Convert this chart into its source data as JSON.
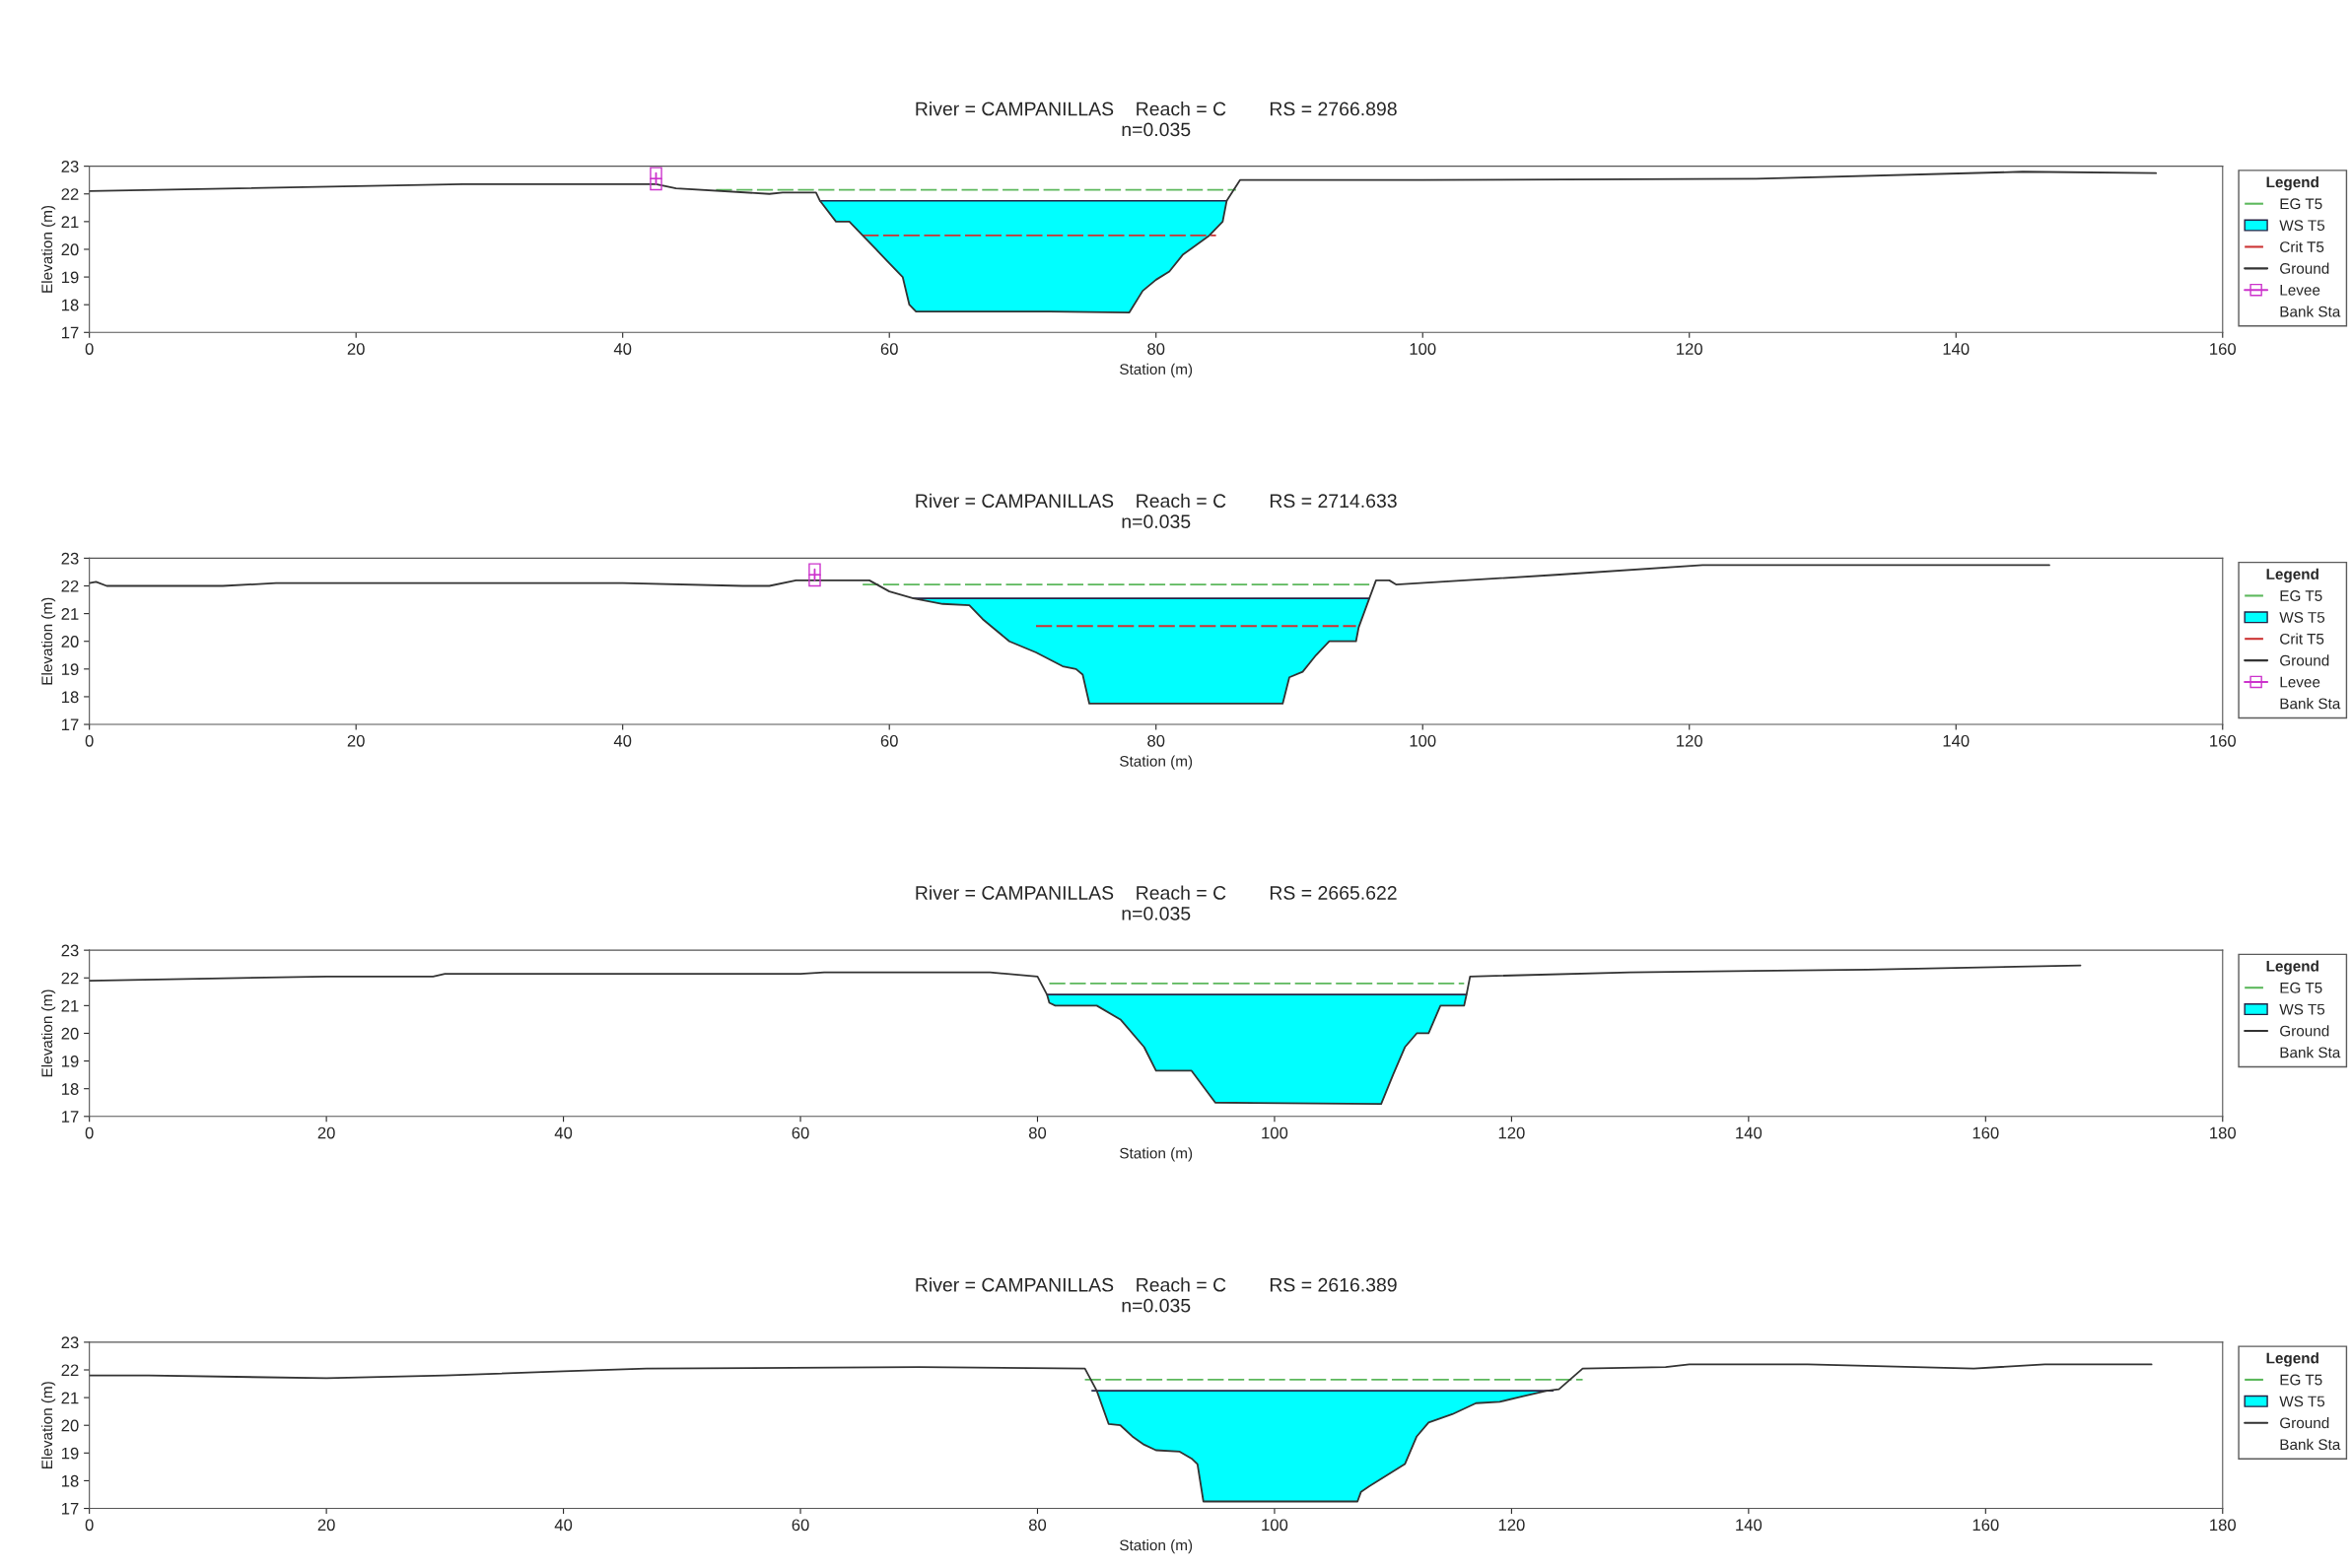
{
  "chart_data": [
    {
      "type": "line",
      "title": "River = CAMPANILLAS    Reach = C        RS = 2766.898",
      "subtitle": "n=0.035",
      "xlabel": "Station (m)",
      "ylabel": "Elevation (m)",
      "legend_title": "Legend",
      "legend": "right",
      "xlim": [
        0,
        160
      ],
      "xticks": [
        0,
        20,
        40,
        60,
        80,
        100,
        120,
        140,
        160
      ],
      "ylim": [
        17,
        23
      ],
      "yticks": [
        17,
        18,
        19,
        20,
        21,
        22,
        23
      ],
      "series": [
        {
          "name": "EG T5",
          "line_style": "dashed",
          "color": "#5cb85c",
          "x": [
            47,
            86
          ],
          "values": [
            22.15,
            22.15
          ]
        },
        {
          "name": "WS T5",
          "type": "area",
          "color": "#00ffff",
          "x": [
            54.8,
            85.3
          ],
          "values": [
            21.75,
            21.75
          ]
        },
        {
          "name": "Crit T5",
          "line_style": "dashed",
          "color": "#cc3333",
          "x": [
            58,
            84.5
          ],
          "values": [
            20.5,
            20.5
          ]
        },
        {
          "name": "Ground",
          "color": "#333333",
          "x": [
            0,
            28,
            42.5,
            44,
            51,
            52,
            54,
            54.5,
            54.8,
            56,
            57,
            58,
            59,
            60,
            61,
            61.5,
            62,
            72,
            78,
            79,
            80,
            81,
            82,
            84,
            85,
            85.3,
            86.3,
            100,
            125,
            145,
            155
          ],
          "values": [
            22.1,
            22.35,
            22.35,
            22.2,
            22.0,
            22.05,
            22.05,
            22.05,
            21.75,
            21.0,
            21.0,
            20.5,
            20.0,
            19.5,
            19.0,
            18.0,
            17.75,
            17.75,
            17.72,
            18.5,
            18.9,
            19.2,
            19.8,
            20.5,
            21.0,
            21.75,
            22.5,
            22.5,
            22.55,
            22.8,
            22.75
          ]
        },
        {
          "name": "Levee",
          "marker": "square",
          "color": "#cc33cc",
          "x": [
            42.5,
            42.5
          ],
          "values": [
            22.35,
            22.75
          ]
        },
        {
          "name": "Bank Sta"
        }
      ]
    },
    {
      "type": "line",
      "title": "River = CAMPANILLAS    Reach = C        RS = 2714.633",
      "subtitle": "n=0.035",
      "xlabel": "Station (m)",
      "ylabel": "Elevation (m)",
      "legend_title": "Legend",
      "legend": "right",
      "xlim": [
        0,
        160
      ],
      "xticks": [
        0,
        20,
        40,
        60,
        80,
        100,
        120,
        140,
        160
      ],
      "ylim": [
        17,
        23
      ],
      "yticks": [
        17,
        18,
        19,
        20,
        21,
        22,
        23
      ],
      "series": [
        {
          "name": "EG T5",
          "line_style": "dashed",
          "color": "#5cb85c",
          "x": [
            58,
            96
          ],
          "values": [
            22.05,
            22.05
          ]
        },
        {
          "name": "WS T5",
          "type": "area",
          "color": "#00ffff",
          "x": [
            61.8,
            96
          ],
          "values": [
            21.55,
            21.55
          ]
        },
        {
          "name": "Crit T5",
          "line_style": "dashed",
          "color": "#cc3333",
          "x": [
            71,
            95
          ],
          "values": [
            20.55,
            20.55
          ]
        },
        {
          "name": "Ground",
          "color": "#333333",
          "x": [
            0,
            0.5,
            1.3,
            10,
            14,
            40,
            49,
            51,
            53,
            58.5,
            60,
            61.8,
            64,
            66,
            67,
            68,
            69,
            71,
            73,
            74,
            74.5,
            75,
            89.5,
            90,
            91,
            92,
            93,
            95,
            95.2,
            96,
            96.5,
            97.5,
            98,
            110,
            121,
            147
          ],
          "values": [
            22.1,
            22.15,
            22.0,
            22.0,
            22.1,
            22.1,
            22.0,
            22.0,
            22.2,
            22.2,
            21.8,
            21.55,
            21.35,
            21.3,
            20.8,
            20.4,
            20.0,
            19.6,
            19.1,
            19.0,
            18.8,
            17.75,
            17.75,
            18.7,
            18.9,
            19.5,
            20.0,
            20.0,
            20.5,
            21.55,
            22.2,
            22.2,
            22.05,
            22.4,
            22.75,
            22.75
          ]
        },
        {
          "name": "Levee",
          "marker": "square",
          "color": "#cc33cc",
          "x": [
            54.4,
            54.4
          ],
          "values": [
            22.2,
            22.6
          ]
        },
        {
          "name": "Bank Sta"
        }
      ]
    },
    {
      "type": "line",
      "title": "River = CAMPANILLAS    Reach = C        RS = 2665.622",
      "subtitle": "n=0.035",
      "xlabel": "Station (m)",
      "ylabel": "Elevation (m)",
      "legend_title": "Legend",
      "legend": "right",
      "xlim": [
        0,
        180
      ],
      "xticks": [
        0,
        20,
        40,
        60,
        80,
        100,
        120,
        140,
        160,
        180
      ],
      "ylim": [
        17,
        23
      ],
      "yticks": [
        17,
        18,
        19,
        20,
        21,
        22,
        23
      ],
      "series": [
        {
          "name": "EG T5",
          "line_style": "dashed",
          "color": "#5cb85c",
          "x": [
            81,
            116
          ],
          "values": [
            21.8,
            21.8
          ]
        },
        {
          "name": "WS T5",
          "type": "area",
          "color": "#00ffff",
          "x": [
            80.8,
            116.2
          ],
          "values": [
            21.4,
            21.4
          ]
        },
        {
          "name": "Ground",
          "color": "#333333",
          "x": [
            0,
            20,
            29,
            30,
            40,
            60,
            62,
            76,
            80,
            80.8,
            81,
            81.5,
            85,
            87,
            89,
            90,
            93,
            95,
            109,
            110,
            111,
            112,
            113,
            114,
            116,
            116.2,
            116.5,
            130,
            150,
            168
          ],
          "values": [
            21.9,
            22.05,
            22.05,
            22.15,
            22.15,
            22.15,
            22.2,
            22.2,
            22.05,
            21.4,
            21.1,
            21.0,
            21.0,
            20.5,
            19.5,
            18.65,
            18.65,
            17.5,
            17.45,
            18.5,
            19.5,
            20.0,
            20.0,
            21.0,
            21.0,
            21.4,
            22.05,
            22.2,
            22.3,
            22.45
          ]
        },
        {
          "name": "Bank Sta"
        }
      ]
    },
    {
      "type": "line",
      "title": "River = CAMPANILLAS    Reach = C        RS = 2616.389",
      "subtitle": "n=0.035",
      "xlabel": "Station (m)",
      "ylabel": "Elevation (m)",
      "legend_title": "Legend",
      "legend": "right",
      "xlim": [
        0,
        180
      ],
      "xticks": [
        0,
        20,
        40,
        60,
        80,
        100,
        120,
        140,
        160,
        180
      ],
      "ylim": [
        17,
        23
      ],
      "yticks": [
        17,
        18,
        19,
        20,
        21,
        22,
        23
      ],
      "series": [
        {
          "name": "EG T5",
          "line_style": "dashed",
          "color": "#5cb85c",
          "x": [
            84,
            126
          ],
          "values": [
            21.65,
            21.65
          ]
        },
        {
          "name": "WS T5",
          "type": "area",
          "color": "#00ffff",
          "x": [
            84.6,
            123.5
          ],
          "values": [
            21.25,
            21.25
          ]
        },
        {
          "name": "Ground",
          "color": "#333333",
          "x": [
            0,
            5,
            20,
            30,
            40,
            47,
            70,
            84,
            85,
            86,
            87,
            88,
            89,
            90,
            92,
            93,
            93.5,
            94,
            107,
            107.3,
            108,
            111,
            112,
            113,
            115,
            117,
            119,
            121,
            123,
            124,
            126,
            133,
            135,
            145,
            159,
            165,
            174
          ],
          "values": [
            21.8,
            21.8,
            21.7,
            21.8,
            21.95,
            22.05,
            22.1,
            22.05,
            21.25,
            20.05,
            20.0,
            19.6,
            19.3,
            19.1,
            19.05,
            18.8,
            18.6,
            17.25,
            17.25,
            17.6,
            17.8,
            18.6,
            19.6,
            20.1,
            20.4,
            20.8,
            20.85,
            21.05,
            21.25,
            21.3,
            22.05,
            22.1,
            22.2,
            22.2,
            22.05,
            22.2,
            22.2
          ]
        },
        {
          "name": "Bank Sta"
        }
      ]
    }
  ]
}
